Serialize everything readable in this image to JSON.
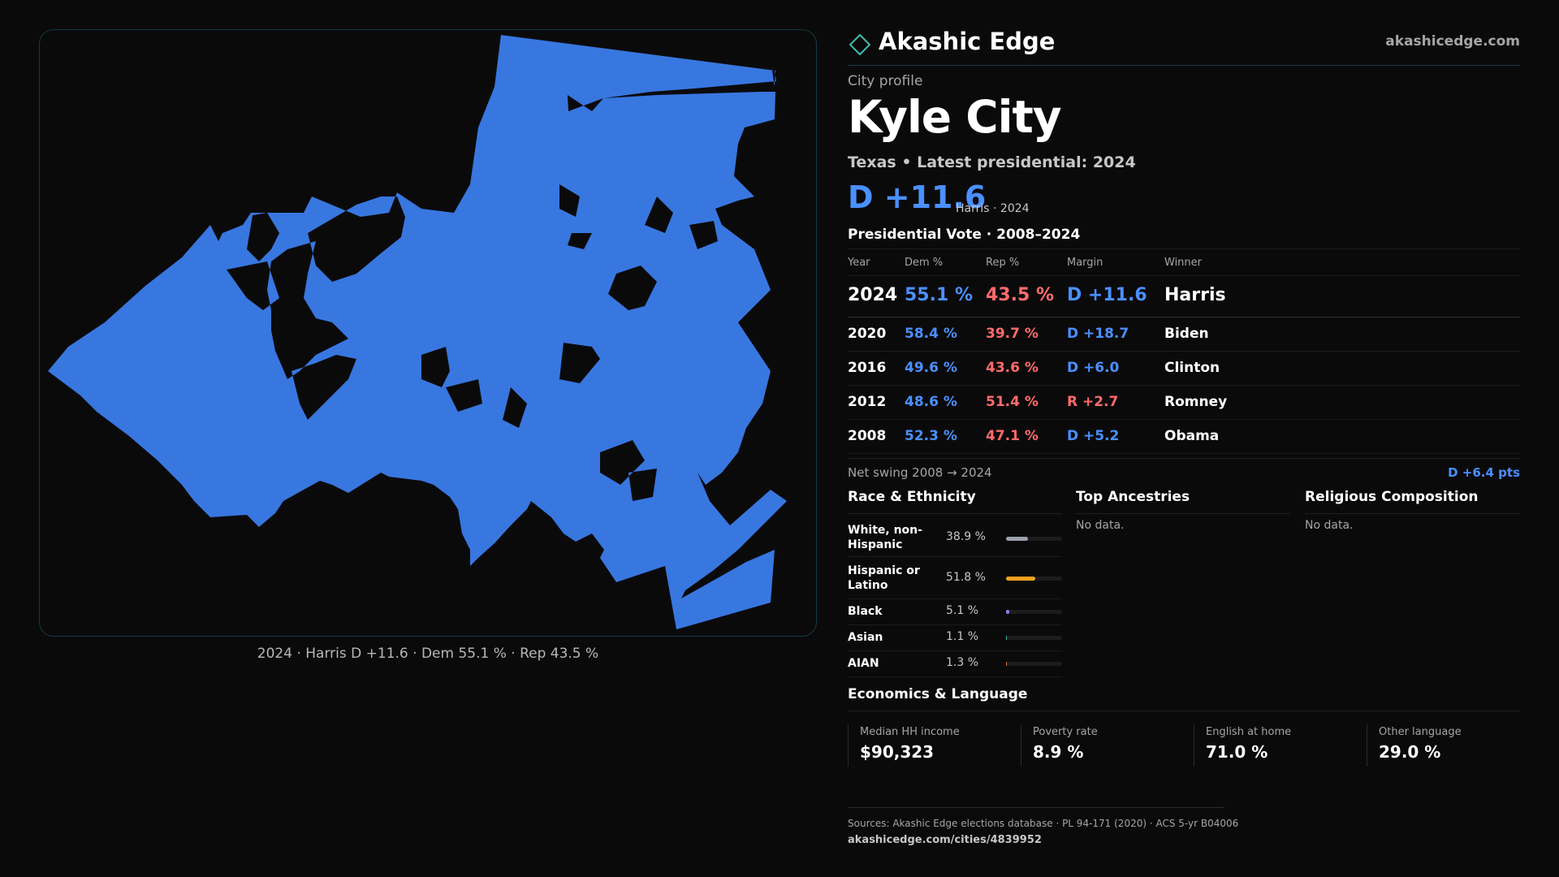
{
  "brand": {
    "name": "Akashic Edge",
    "url": "akashicedge.com"
  },
  "profile": {
    "eyebrow": "City profile",
    "city": "Kyle City",
    "subline": "Texas • Latest presidential: 2024",
    "headline_margin": "D +11.6",
    "headline_note": "Harris · 2024"
  },
  "map": {
    "caption": "2024 · Harris D +11.6 · Dem 55.1 % · Rep 43.5 %",
    "fill_color": "#3877e0",
    "background": "#0b0a0b",
    "border_color": "#123a40"
  },
  "vote": {
    "title": "Presidential Vote · 2008–2024",
    "columns": [
      "Year",
      "Dem %",
      "Rep %",
      "Margin",
      "Winner"
    ],
    "rows": [
      {
        "year": "2024",
        "dem": "55.1 %",
        "rep": "43.5 %",
        "margin": "D +11.6",
        "winner": "Harris",
        "party": "D"
      },
      {
        "year": "2020",
        "dem": "58.4 %",
        "rep": "39.7 %",
        "margin": "D +18.7",
        "winner": "Biden",
        "party": "D"
      },
      {
        "year": "2016",
        "dem": "49.6 %",
        "rep": "43.6 %",
        "margin": "D +6.0",
        "winner": "Clinton",
        "party": "D"
      },
      {
        "year": "2012",
        "dem": "48.6 %",
        "rep": "51.4 %",
        "margin": "R +2.7",
        "winner": "Romney",
        "party": "R"
      },
      {
        "year": "2008",
        "dem": "52.3 %",
        "rep": "47.1 %",
        "margin": "D +5.2",
        "winner": "Obama",
        "party": "D"
      }
    ],
    "swing_label": "Net swing 2008 → 2024",
    "swing_value": "D +6.4 pts"
  },
  "race": {
    "title": "Race & Ethnicity",
    "rows": [
      {
        "label": "White, non-Hispanic",
        "pct": "38.9 %",
        "value": 38.9,
        "color": "#9aa0ab"
      },
      {
        "label": "Hispanic or Latino",
        "pct": "51.8 %",
        "value": 51.8,
        "color": "#f0a020"
      },
      {
        "label": "Black",
        "pct": "5.1 %",
        "value": 5.1,
        "color": "#8a7ff0"
      },
      {
        "label": "Asian",
        "pct": "1.1 %",
        "value": 1.1,
        "color": "#3fbfae"
      },
      {
        "label": "AIAN",
        "pct": "1.3 %",
        "value": 1.3,
        "color": "#e07040"
      }
    ]
  },
  "ancestries": {
    "title": "Top Ancestries",
    "empty": "No data."
  },
  "religion": {
    "title": "Religious Composition",
    "empty": "No data."
  },
  "economics": {
    "title": "Economics & Language",
    "cells": [
      {
        "label": "Median HH income",
        "value": "$90,323"
      },
      {
        "label": "Poverty rate",
        "value": "8.9 %"
      },
      {
        "label": "English at home",
        "value": "71.0 %"
      },
      {
        "label": "Other language",
        "value": "29.0 %"
      }
    ]
  },
  "sources": {
    "text": "Sources: Akashic Edge elections database · PL 94-171 (2020) · ACS 5-yr B04006",
    "url": "akashicedge.com/cities/4839952"
  }
}
